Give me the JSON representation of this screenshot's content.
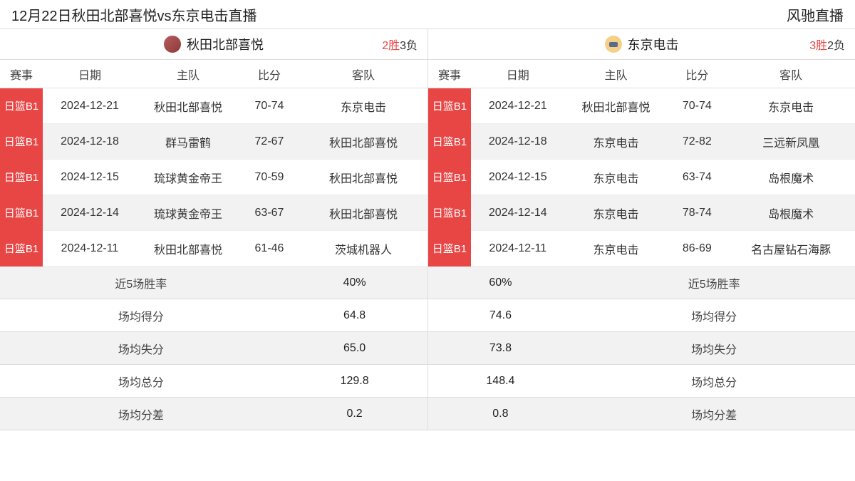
{
  "header": {
    "title": "12月22日秋田北部喜悦vs东京电击直播",
    "brand": "风驰直播"
  },
  "columns": {
    "league": "赛事",
    "date": "日期",
    "home": "主队",
    "score": "比分",
    "away": "客队"
  },
  "left": {
    "team_name": "秋田北部喜悦",
    "wins": "2胜",
    "losses": "3负",
    "logo_bg": "#a0504c",
    "matches": [
      {
        "league": "日篮B1",
        "date": "2024-12-21",
        "home": "秋田北部喜悦",
        "score": "70-74",
        "away": "东京电击"
      },
      {
        "league": "日篮B1",
        "date": "2024-12-18",
        "home": "群马雷鹤",
        "score": "72-67",
        "away": "秋田北部喜悦"
      },
      {
        "league": "日篮B1",
        "date": "2024-12-15",
        "home": "琉球黄金帝王",
        "score": "70-59",
        "away": "秋田北部喜悦"
      },
      {
        "league": "日篮B1",
        "date": "2024-12-14",
        "home": "琉球黄金帝王",
        "score": "63-67",
        "away": "秋田北部喜悦"
      },
      {
        "league": "日篮B1",
        "date": "2024-12-11",
        "home": "秋田北部喜悦",
        "score": "61-46",
        "away": "茨城机器人"
      }
    ]
  },
  "right": {
    "team_name": "东京电击",
    "wins": "3胜",
    "losses": "2负",
    "logo_bg": "#f5d088",
    "matches": [
      {
        "league": "日篮B1",
        "date": "2024-12-21",
        "home": "秋田北部喜悦",
        "score": "70-74",
        "away": "东京电击"
      },
      {
        "league": "日篮B1",
        "date": "2024-12-18",
        "home": "东京电击",
        "score": "72-82",
        "away": "三远新凤凰"
      },
      {
        "league": "日篮B1",
        "date": "2024-12-15",
        "home": "东京电击",
        "score": "63-74",
        "away": "岛根魔术"
      },
      {
        "league": "日篮B1",
        "date": "2024-12-14",
        "home": "东京电击",
        "score": "78-74",
        "away": "岛根魔术"
      },
      {
        "league": "日篮B1",
        "date": "2024-12-11",
        "home": "东京电击",
        "score": "86-69",
        "away": "名古屋钻石海豚"
      }
    ]
  },
  "stats": {
    "rows": [
      {
        "label": "近5场胜率",
        "left": "40%",
        "right": "60%"
      },
      {
        "label": "场均得分",
        "left": "64.8",
        "right": "74.6"
      },
      {
        "label": "场均失分",
        "left": "65.0",
        "right": "73.8"
      },
      {
        "label": "场均总分",
        "left": "129.8",
        "right": "148.4"
      },
      {
        "label": "场均分差",
        "left": "0.2",
        "right": "0.8"
      }
    ]
  },
  "style": {
    "league_badge_bg": "#e84545",
    "league_badge_fg": "#ffffff",
    "win_color": "#e84545",
    "row_alt_bg": "#f2f2f2",
    "border_color": "#dddddd",
    "text_color": "#333333",
    "background": "#ffffff",
    "font_family": "Microsoft YaHei",
    "base_font_size": 16
  }
}
